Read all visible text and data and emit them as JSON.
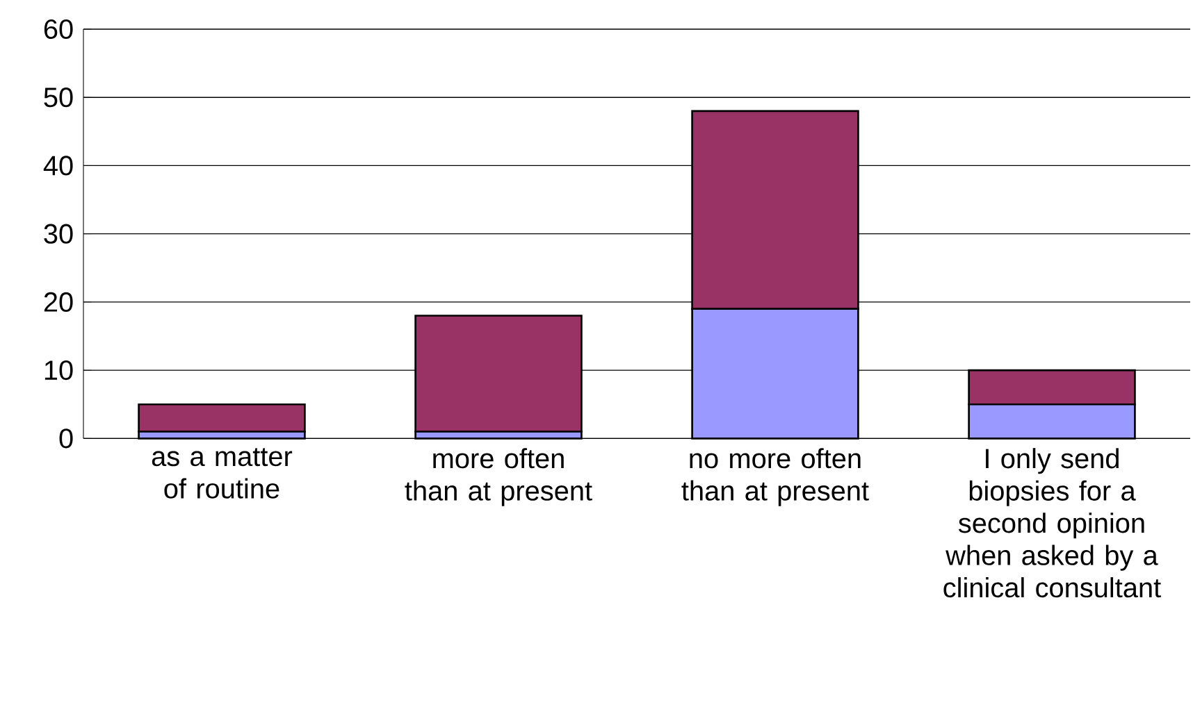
{
  "chart_data": {
    "type": "bar",
    "stacked": true,
    "categories": [
      "as a matter of routine",
      "more often than at present",
      "no more often than at present",
      "I only send biopsies for a second opinion when asked by a clinical consultant"
    ],
    "series": [
      {
        "color": "#9999ff",
        "values": [
          1,
          1,
          19,
          5
        ]
      },
      {
        "color": "#993366",
        "values": [
          4,
          17,
          29,
          5
        ]
      }
    ],
    "ylim": [
      0,
      60
    ],
    "yticks": [
      0,
      10,
      20,
      30,
      40,
      50,
      60
    ],
    "grid": "y"
  }
}
